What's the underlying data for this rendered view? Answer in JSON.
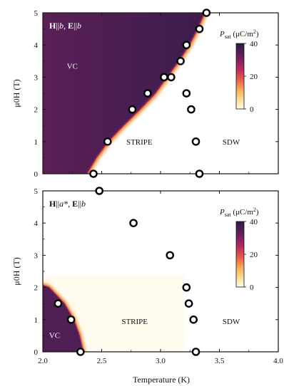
{
  "chart_data": [
    {
      "type": "scatter",
      "panel": "top",
      "title": "H||b, E||b",
      "title_parts": {
        "h": "H",
        "h_sub": "b",
        "e": "E",
        "e_sub": "b"
      },
      "xlim": [
        2.0,
        4.0
      ],
      "ylim": [
        0,
        5
      ],
      "yticks": [
        0,
        1,
        2,
        3,
        4,
        5
      ],
      "ylabel": "μ0H (T)",
      "heatmap": {
        "quantity": "P_sat (μC/m²)",
        "label_main": "P",
        "label_sub": "sat",
        "label_unit": " (μC/m",
        "label_sup": "2",
        "label_end": ")",
        "range": [
          0,
          40
        ],
        "ticks": [
          "40",
          "20",
          "0"
        ],
        "phase_boundary": [
          [
            2.37,
            0
          ],
          [
            2.45,
            0.5
          ],
          [
            2.55,
            1.0
          ],
          [
            2.68,
            1.5
          ],
          [
            2.82,
            2.0
          ],
          [
            2.95,
            2.5
          ],
          [
            3.05,
            3.0
          ],
          [
            3.15,
            3.5
          ],
          [
            3.24,
            4.0
          ],
          [
            3.31,
            4.5
          ],
          [
            3.37,
            5.0
          ]
        ]
      },
      "regions": [
        {
          "label": "VC",
          "x": 2.25,
          "y": 3.35
        },
        {
          "label": "STRIPE",
          "x": 2.82,
          "y": 1.0
        },
        {
          "label": "SDW",
          "x": 3.6,
          "y": 1.0
        }
      ],
      "points": [
        [
          2.43,
          0
        ],
        [
          2.55,
          1.0
        ],
        [
          2.76,
          2.0
        ],
        [
          2.89,
          2.5
        ],
        [
          3.03,
          3.0
        ],
        [
          3.09,
          3.0
        ],
        [
          3.17,
          3.5
        ],
        [
          3.22,
          4.0
        ],
        [
          3.33,
          4.5
        ],
        [
          3.39,
          5.0
        ],
        [
          3.22,
          2.5
        ],
        [
          3.26,
          2.0
        ],
        [
          3.3,
          1.0
        ],
        [
          3.33,
          0
        ]
      ]
    },
    {
      "type": "scatter",
      "panel": "bottom",
      "title": "H||a*, E||b",
      "title_parts": {
        "h": "H",
        "h_sub": "a*",
        "e": "E",
        "e_sub": "b"
      },
      "xlim": [
        2.0,
        4.0
      ],
      "ylim": [
        0,
        5
      ],
      "xticks": [
        "2.0",
        "2.5",
        "3.0",
        "3.5",
        "4.0"
      ],
      "yticks": [
        0,
        1,
        2,
        3,
        4,
        5
      ],
      "xlabel": "Temperature (K)",
      "ylabel": "μ0H (T)",
      "heatmap": {
        "quantity": "P_sat (μC/m²)",
        "label_main": "P",
        "label_sub": "sat",
        "label_unit": " (μC/m",
        "label_sup": "2",
        "label_end": ")",
        "range": [
          0,
          40
        ],
        "ticks": [
          "40",
          "20",
          "0"
        ],
        "phase_boundary": [
          [
            2.34,
            0
          ],
          [
            2.31,
            0.5
          ],
          [
            2.26,
            1.0
          ],
          [
            2.18,
            1.5
          ],
          [
            2.05,
            2.0
          ],
          [
            2.0,
            2.06
          ]
        ]
      },
      "regions": [
        {
          "label": "VC",
          "x": 2.1,
          "y": 0.52
        },
        {
          "label": "STRIPE",
          "x": 2.78,
          "y": 0.95
        },
        {
          "label": "SDW",
          "x": 3.6,
          "y": 0.95
        }
      ],
      "points": [
        [
          2.13,
          1.5
        ],
        [
          2.24,
          1.0
        ],
        [
          2.32,
          0
        ],
        [
          2.48,
          5.0
        ],
        [
          2.77,
          4.0
        ],
        [
          3.08,
          3.0
        ],
        [
          3.22,
          2.0
        ],
        [
          3.24,
          1.5
        ],
        [
          3.28,
          1.0
        ],
        [
          3.3,
          0
        ]
      ]
    }
  ]
}
